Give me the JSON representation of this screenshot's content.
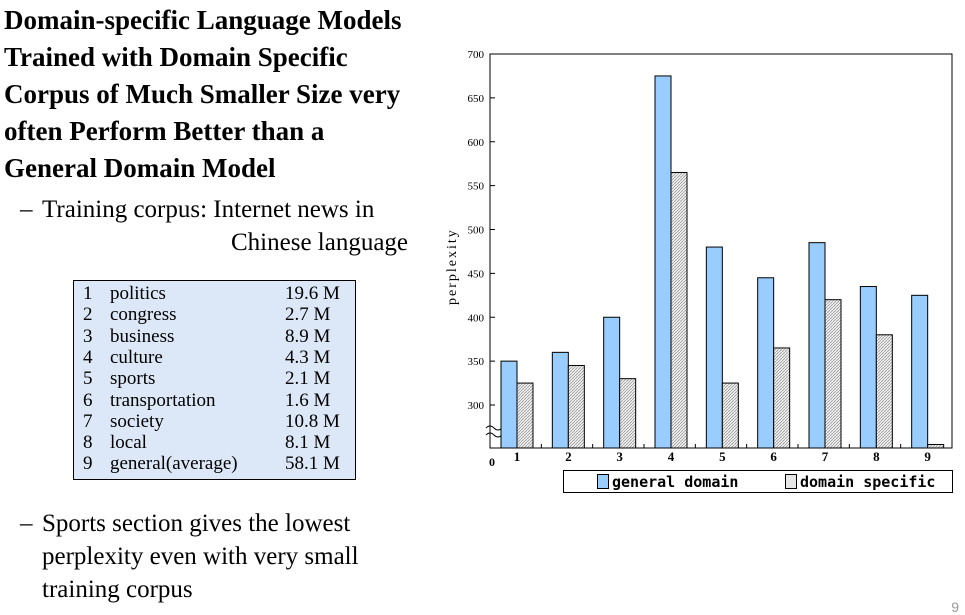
{
  "title": "Domain-specific Language Models Trained with Domain Specific Corpus of Much Smaller Size very often Perform Better than a General Domain Model",
  "title_lines": [
    "Domain-specific Language Models",
    "Trained with Domain Specific",
    "Corpus of Much Smaller Size very",
    "often Perform Better than a",
    "General Domain Model"
  ],
  "bullet1": {
    "dash": "–",
    "line1": "Training corpus: Internet news in",
    "line2": "Chinese language"
  },
  "corpus_table": [
    {
      "num": "1",
      "name": "politics",
      "size": "19.6 M"
    },
    {
      "num": "2",
      "name": "congress",
      "size": "2.7 M"
    },
    {
      "num": "3",
      "name": "business",
      "size": "8.9 M"
    },
    {
      "num": "4",
      "name": "culture",
      "size": "4.3 M"
    },
    {
      "num": "5",
      "name": "sports",
      "size": "2.1 M"
    },
    {
      "num": "6",
      "name": "transportation",
      "size": "1.6 M"
    },
    {
      "num": "7",
      "name": "society",
      "size": "10.8 M"
    },
    {
      "num": "8",
      "name": "local",
      "size": "8.1 M"
    },
    {
      "num": "9",
      "name": "general(average)",
      "size": "58.1 M"
    }
  ],
  "bullet2": {
    "dash": "–",
    "lines": [
      "Sports section gives the lowest",
      "perplexity even with very small",
      "training corpus"
    ]
  },
  "chart_data": {
    "type": "bar",
    "categories": [
      "1",
      "2",
      "3",
      "4",
      "5",
      "6",
      "7",
      "8",
      "9"
    ],
    "series": [
      {
        "name": "general domain",
        "color": "#99ccff",
        "values": [
          350,
          360,
          400,
          675,
          480,
          445,
          485,
          435,
          425
        ]
      },
      {
        "name": "domain specific",
        "color": "#e6e6e6",
        "values": [
          325,
          345,
          330,
          565,
          325,
          365,
          420,
          380,
          255
        ]
      }
    ],
    "ylabel": "perplexity",
    "ylim": [
      250,
      700
    ],
    "yticks": [
      300,
      350,
      400,
      450,
      500,
      550,
      600,
      650,
      700
    ],
    "origin_label": "0",
    "axis_break": true,
    "grid": false,
    "legend_position": "bottom"
  },
  "slide_number": "9"
}
